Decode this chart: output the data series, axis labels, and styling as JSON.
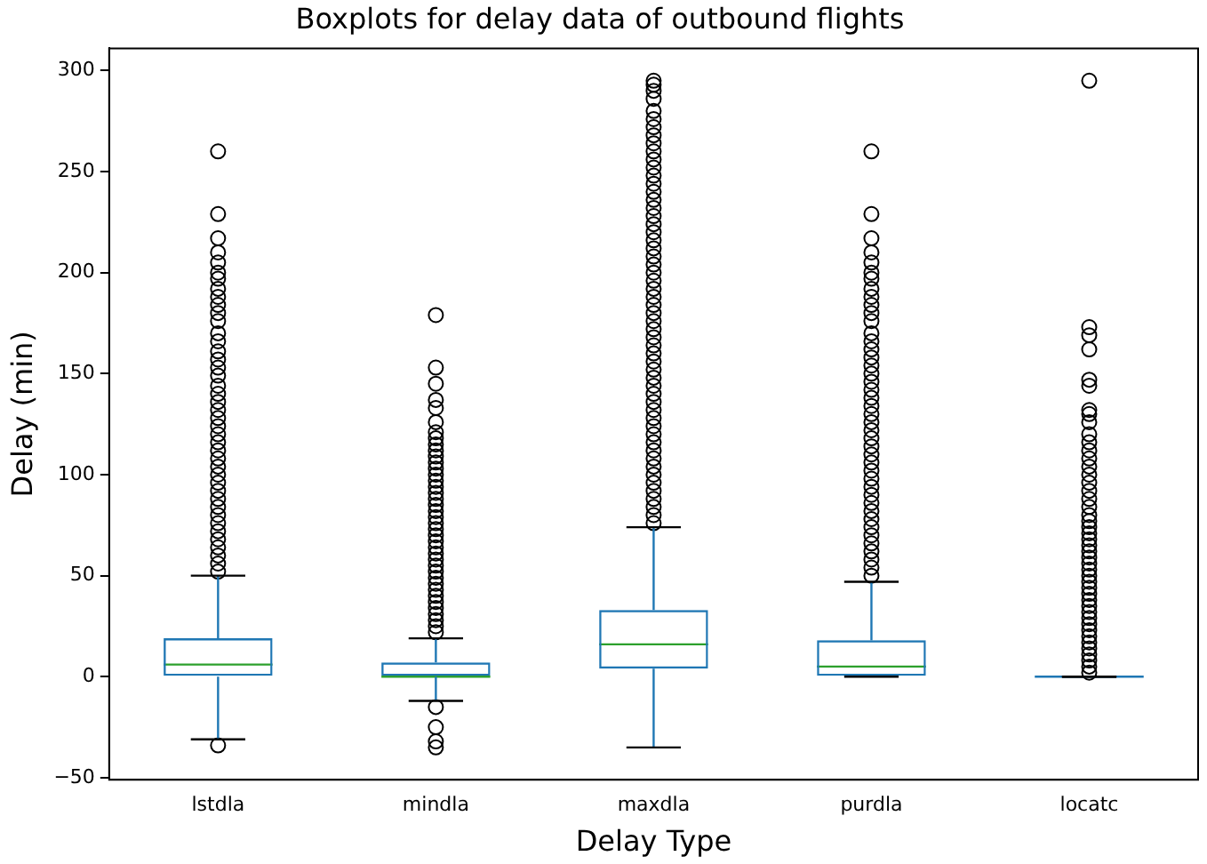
{
  "chart_data": {
    "type": "box",
    "title": "Boxplots for delay data of outbound flights",
    "xlabel": "Delay Type",
    "ylabel": "Delay (min)",
    "categories": [
      "lstdla",
      "mindla",
      "maxdla",
      "purdla",
      "locatc"
    ],
    "series": [
      {
        "color": "#1f77b4",
        "boxes": [
          {
            "low": -31,
            "q1": 0,
            "median": 6,
            "q3": 19,
            "high": 50,
            "outliers": [
              -34,
              52,
              56,
              60,
              64,
              68,
              72,
              76,
              80,
              84,
              88,
              92,
              96,
              100,
              104,
              108,
              112,
              116,
              120,
              124,
              128,
              132,
              136,
              140,
              144,
              149,
              153,
              157,
              161,
              166,
              170,
              176,
              180,
              184,
              188,
              192,
              197,
              200,
              205,
              210,
              217,
              229,
              260
            ]
          },
          {
            "low": -12,
            "q1": 0,
            "median": 0,
            "q3": 7,
            "high": 19,
            "outliers": [
              -15,
              -25,
              -32,
              -35,
              22,
              25,
              28,
              31,
              34,
              37,
              40,
              43,
              46,
              49,
              52,
              55,
              58,
              61,
              64,
              67,
              70,
              73,
              76,
              79,
              82,
              85,
              88,
              91,
              94,
              97,
              100,
              103,
              106,
              109,
              112,
              115,
              118,
              121,
              126,
              133,
              137,
              145,
              153,
              179
            ]
          },
          {
            "low": -35,
            "q1": 4,
            "median": 16,
            "q3": 33,
            "high": 74,
            "outliers": [
              76,
              80,
              84,
              88,
              92,
              96,
              100,
              104,
              108,
              112,
              116,
              120,
              124,
              128,
              132,
              136,
              140,
              144,
              148,
              152,
              156,
              160,
              164,
              168,
              172,
              176,
              180,
              184,
              188,
              192,
              196,
              200,
              204,
              208,
              212,
              216,
              220,
              224,
              228,
              232,
              236,
              240,
              244,
              248,
              252,
              256,
              260,
              264,
              268,
              272,
              276,
              280,
              286,
              290,
              293,
              295
            ]
          },
          {
            "low": 0,
            "q1": 0,
            "median": 5,
            "q3": 18,
            "high": 47,
            "outliers": [
              50,
              54,
              58,
              62,
              66,
              70,
              74,
              78,
              82,
              86,
              90,
              94,
              98,
              102,
              106,
              110,
              114,
              118,
              122,
              126,
              130,
              134,
              138,
              142,
              146,
              150,
              154,
              158,
              162,
              166,
              170,
              176,
              180,
              184,
              188,
              192,
              197,
              200,
              205,
              210,
              217,
              229,
              260
            ]
          },
          {
            "low": 0,
            "q1": 0,
            "median": 0,
            "q3": 0,
            "high": 0,
            "outliers": [
              2,
              5,
              8,
              11,
              14,
              17,
              20,
              23,
              26,
              29,
              32,
              35,
              38,
              41,
              44,
              47,
              50,
              53,
              56,
              59,
              62,
              65,
              68,
              71,
              74,
              77,
              80,
              84,
              88,
              92,
              96,
              100,
              104,
              108,
              112,
              116,
              120,
              126,
              130,
              132,
              144,
              147,
              162,
              169,
              173,
              295
            ]
          }
        ]
      }
    ],
    "ylim": [
      -51,
      311
    ],
    "yticks": [
      {
        "value": -50,
        "label": "−50"
      },
      0,
      50,
      100,
      150,
      200,
      250,
      300
    ],
    "grid": false,
    "legend": false,
    "marker": "circle"
  }
}
